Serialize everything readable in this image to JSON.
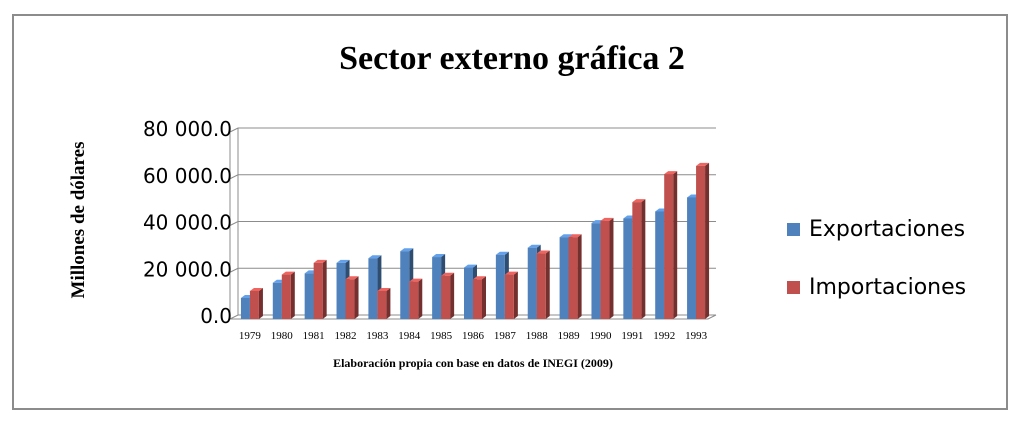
{
  "chart_data": {
    "type": "bar",
    "title": "Sector externo gráfica 2",
    "xlabel": "Elaboración propia con base en datos de INEGI (2009)",
    "ylabel": "Millones de dólares",
    "ylim": [
      0,
      80000
    ],
    "yticks": [
      0,
      20000,
      40000,
      60000,
      80000
    ],
    "ytick_labels": [
      "0.0",
      "20 000.0",
      "40 000.0",
      "60 000.0",
      "80 000.0"
    ],
    "grid": true,
    "legend": "right",
    "categories": [
      "1979",
      "1980",
      "1981",
      "1982",
      "1983",
      "1984",
      "1985",
      "1986",
      "1987",
      "1988",
      "1989",
      "1990",
      "1991",
      "1992",
      "1993"
    ],
    "series": [
      {
        "name": "Exportaciones",
        "color": "#4f81bd",
        "values": [
          9000,
          15500,
          19500,
          24000,
          26000,
          29000,
          26500,
          22000,
          27500,
          30500,
          35000,
          41000,
          43000,
          46000,
          52000
        ]
      },
      {
        "name": "Importaciones",
        "color": "#c0504d",
        "values": [
          12000,
          19000,
          24000,
          17000,
          12000,
          16000,
          18500,
          17000,
          19000,
          28000,
          35000,
          42000,
          50000,
          62000,
          65500
        ]
      }
    ]
  }
}
